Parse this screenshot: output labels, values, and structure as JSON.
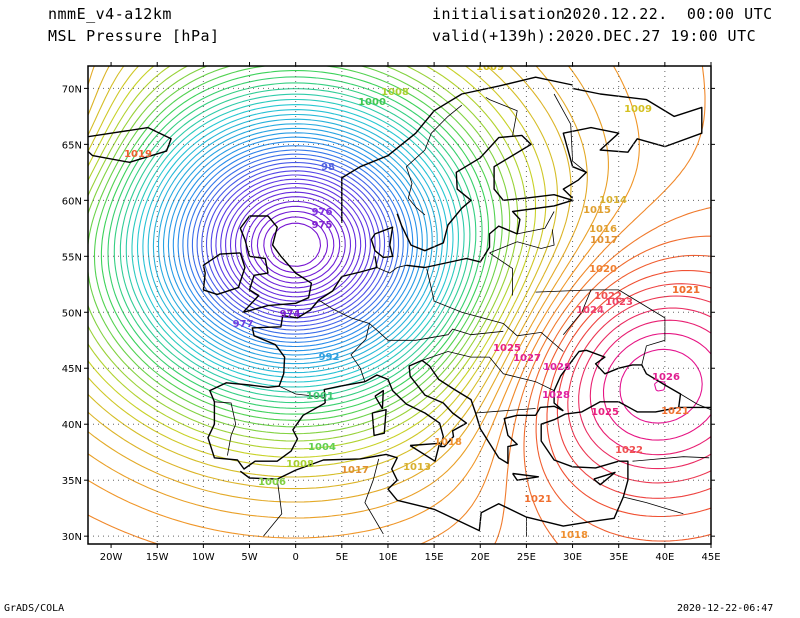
{
  "header": {
    "model": "nmmE_v4-a12km",
    "field": "MSL Pressure [hPa]",
    "init_label": "initialisation:",
    "init_value": "2020.12.22.  00:00 UTC",
    "valid_label": "valid(+139h):",
    "valid_value": "2020.DEC.27 19:00 UTC"
  },
  "footer": {
    "left": "GrADS/COLA",
    "right": "2020-12-22-06:47"
  },
  "map": {
    "lon_ticks": [
      "20W",
      "15W",
      "10W",
      "5W",
      "0",
      "5E",
      "10E",
      "15E",
      "20E",
      "25E",
      "30E",
      "35E",
      "40E",
      "45E"
    ],
    "lat_ticks": [
      "70N",
      "65N",
      "60N",
      "55N",
      "50N",
      "45N",
      "40N",
      "35N",
      "30N"
    ],
    "contour_labels": [
      {
        "text": "1009",
        "color": "#d4c020"
      },
      {
        "text": "1009",
        "color": "#d4c020"
      },
      {
        "text": "1008",
        "color": "#a8d030"
      },
      {
        "text": "1000",
        "color": "#40c850"
      },
      {
        "text": "1019",
        "color": "#f06030"
      },
      {
        "text": "1015",
        "color": "#e0a030"
      },
      {
        "text": "1014",
        "color": "#d8b030"
      },
      {
        "text": "1016",
        "color": "#e0a030"
      },
      {
        "text": "1017",
        "color": "#e09030"
      },
      {
        "text": "1020",
        "color": "#f08030"
      },
      {
        "text": "1021",
        "color": "#f07030"
      },
      {
        "text": "1022",
        "color": "#f05050"
      },
      {
        "text": "1023",
        "color": "#f04060"
      },
      {
        "text": "1024",
        "color": "#f04070"
      },
      {
        "text": "1025",
        "color": "#e82080"
      },
      {
        "text": "1027",
        "color": "#e02090"
      },
      {
        "text": "1028",
        "color": "#e020a0"
      },
      {
        "text": "1026",
        "color": "#e02090"
      },
      {
        "text": "1028",
        "color": "#e020a0"
      },
      {
        "text": "1025",
        "color": "#e82080"
      },
      {
        "text": "1021",
        "color": "#f07030"
      },
      {
        "text": "1022",
        "color": "#f05050"
      },
      {
        "text": "1018",
        "color": "#f09030"
      },
      {
        "text": "1018",
        "color": "#f09030"
      },
      {
        "text": "1017",
        "color": "#e09030"
      },
      {
        "text": "1013",
        "color": "#d8b030"
      },
      {
        "text": "1008",
        "color": "#a8d030"
      },
      {
        "text": "1006",
        "color": "#80d040"
      },
      {
        "text": "1004",
        "color": "#60d050"
      },
      {
        "text": "1001",
        "color": "#40c870"
      },
      {
        "text": "992",
        "color": "#30a0e0"
      },
      {
        "text": "975",
        "color": "#8020d0"
      },
      {
        "text": "976",
        "color": "#8030e0"
      },
      {
        "text": "977",
        "color": "#7040e0"
      },
      {
        "text": "974",
        "color": "#8020d0"
      },
      {
        "text": "98",
        "color": "#5060e0"
      },
      {
        "text": "1021",
        "color": "#f07030"
      },
      {
        "text": "1021",
        "color": "#f07030"
      }
    ]
  },
  "colors": {
    "low": "#7a10d0",
    "mid": "#30c8e0",
    "neutral": "#40d040",
    "high": "#f08020",
    "very_high": "#e01090",
    "coast": "#000000"
  }
}
